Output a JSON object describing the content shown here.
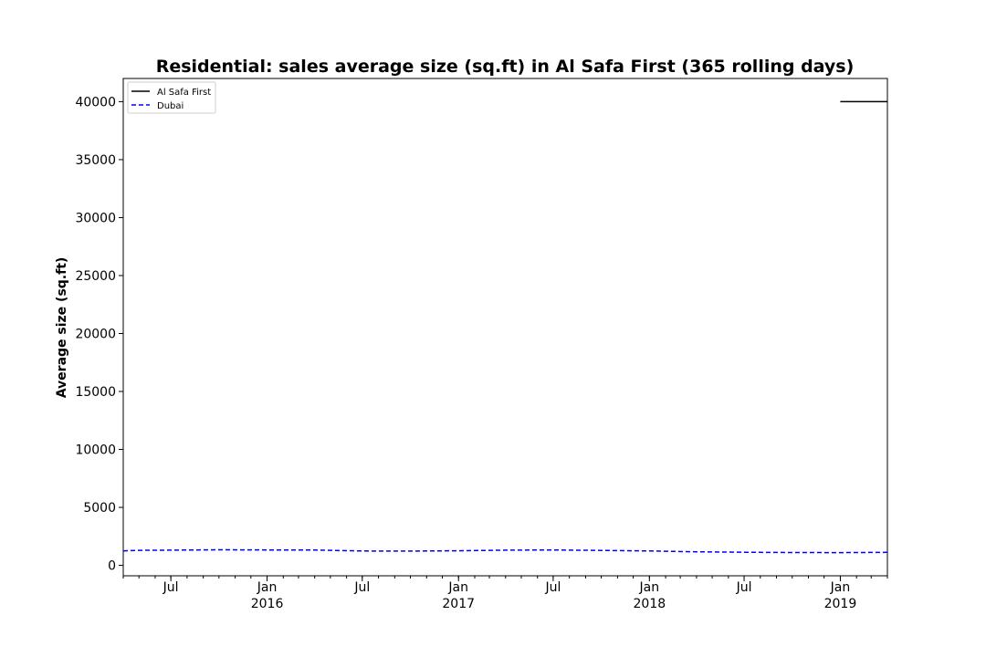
{
  "chart_data": {
    "type": "line",
    "title": "Residential: sales average size (sq.ft) in Al Safa First (365 rolling days)",
    "xlabel": "",
    "ylabel": "Average size (sq.ft)",
    "xlim": [
      "2015-04-01",
      "2019-04-01"
    ],
    "ylim": [
      -900,
      42000
    ],
    "yticks": [
      0,
      5000,
      10000,
      15000,
      20000,
      25000,
      30000,
      35000,
      40000
    ],
    "xticks": [
      {
        "date": "2015-07-01",
        "label": "Jul",
        "year": ""
      },
      {
        "date": "2016-01-01",
        "label": "Jan",
        "year": "2016"
      },
      {
        "date": "2016-07-01",
        "label": "Jul",
        "year": ""
      },
      {
        "date": "2017-01-01",
        "label": "Jan",
        "year": "2017"
      },
      {
        "date": "2017-07-01",
        "label": "Jul",
        "year": ""
      },
      {
        "date": "2018-01-01",
        "label": "Jan",
        "year": "2018"
      },
      {
        "date": "2018-07-01",
        "label": "Jul",
        "year": ""
      },
      {
        "date": "2019-01-01",
        "label": "Jan",
        "year": "2019"
      }
    ],
    "grid": false,
    "legend_position": "top-left",
    "series": [
      {
        "name": "Al Safa First",
        "color": "#000000",
        "style": "solid",
        "points": [
          {
            "x": "2019-01-01",
            "y": 40000
          },
          {
            "x": "2019-04-01",
            "y": 40000
          }
        ]
      },
      {
        "name": "Dubai",
        "color": "#0000ff",
        "style": "dashed",
        "points": [
          {
            "x": "2015-04-01",
            "y": 1250
          },
          {
            "x": "2015-05-01",
            "y": 1300
          },
          {
            "x": "2015-07-01",
            "y": 1310
          },
          {
            "x": "2015-10-01",
            "y": 1340
          },
          {
            "x": "2016-01-01",
            "y": 1330
          },
          {
            "x": "2016-04-01",
            "y": 1320
          },
          {
            "x": "2016-07-01",
            "y": 1240
          },
          {
            "x": "2016-10-01",
            "y": 1230
          },
          {
            "x": "2017-01-01",
            "y": 1260
          },
          {
            "x": "2017-04-01",
            "y": 1310
          },
          {
            "x": "2017-07-01",
            "y": 1330
          },
          {
            "x": "2017-10-01",
            "y": 1290
          },
          {
            "x": "2018-01-01",
            "y": 1240
          },
          {
            "x": "2018-04-01",
            "y": 1170
          },
          {
            "x": "2018-07-01",
            "y": 1130
          },
          {
            "x": "2018-10-01",
            "y": 1110
          },
          {
            "x": "2019-01-01",
            "y": 1100
          },
          {
            "x": "2019-04-01",
            "y": 1120
          }
        ]
      }
    ]
  }
}
